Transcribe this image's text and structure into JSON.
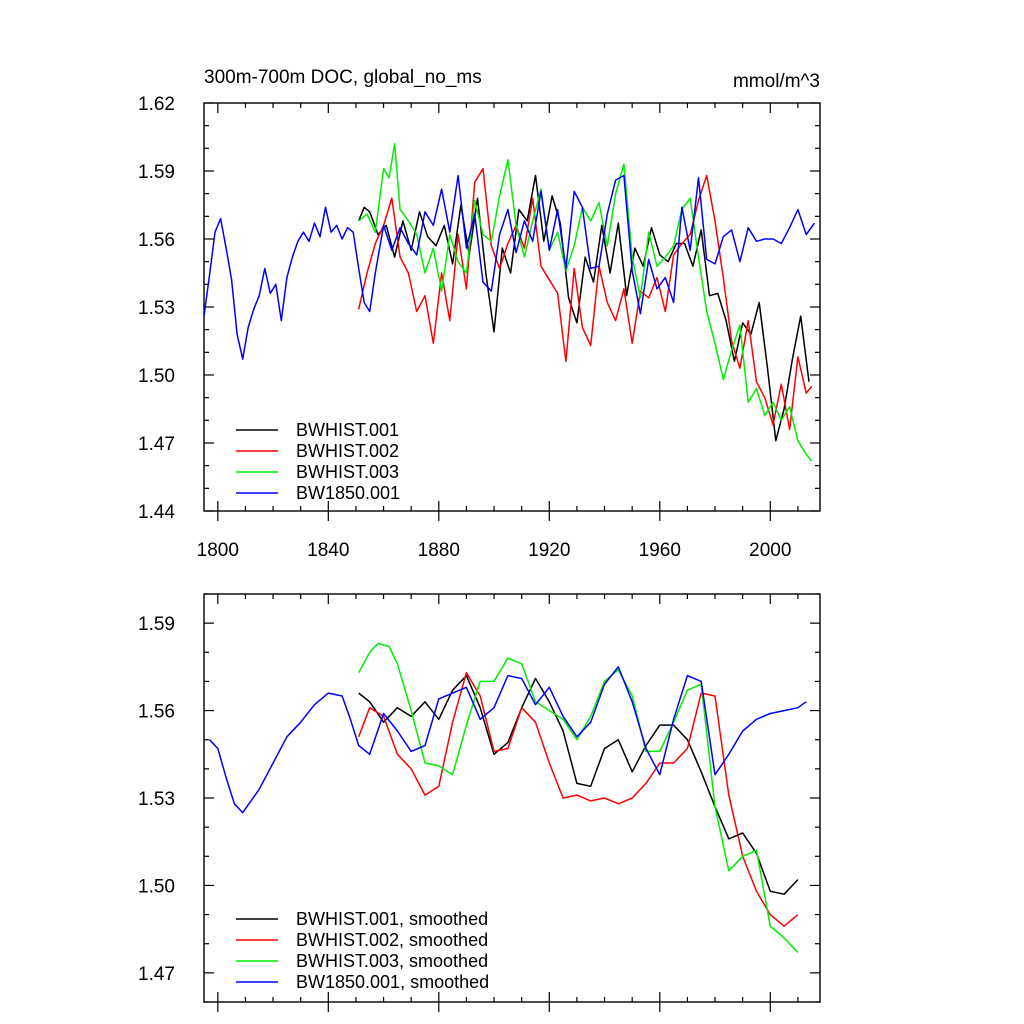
{
  "figure": {
    "title": "300m-700m DOC, global_no_ms",
    "units": "mmol/m^3"
  },
  "colors": {
    "BWHIST.001": "#000000",
    "BWHIST.002": "#ff0000",
    "BWHIST.003": "#00ee00",
    "BW1850.001": "#0000ff"
  },
  "chart_data": [
    {
      "type": "line",
      "title": "300m-700m DOC, global_no_ms",
      "ylabel": "mmol/m^3",
      "xlabel": "",
      "xlim": [
        1795,
        2018
      ],
      "ylim": [
        1.44,
        1.62
      ],
      "xticks": [
        1800,
        1840,
        1880,
        1920,
        1960,
        2000
      ],
      "xtick_labels": [
        "1800",
        "1840",
        "1880",
        "1920",
        "1960",
        "2000"
      ],
      "yticks": [
        1.44,
        1.47,
        1.5,
        1.53,
        1.56,
        1.59,
        1.62
      ],
      "ytick_labels": [
        "1.44",
        "1.47",
        "1.50",
        "1.53",
        "1.56",
        "1.59",
        "1.62"
      ],
      "legend_position": "bottom-left",
      "series": [
        {
          "name": "BWHIST.001",
          "x": [
            1851,
            1853,
            1855,
            1858,
            1861,
            1864,
            1867,
            1870,
            1873,
            1876,
            1879,
            1882,
            1885,
            1888,
            1891,
            1894,
            1897,
            1900,
            1903,
            1906,
            1909,
            1912,
            1915,
            1918,
            1921,
            1924,
            1927,
            1930,
            1933,
            1936,
            1939,
            1942,
            1945,
            1948,
            1951,
            1954,
            1957,
            1960,
            1963,
            1966,
            1969,
            1972,
            1975,
            1978,
            1981,
            1984,
            1987,
            1990,
            1993,
            1996,
            1999,
            2002,
            2005,
            2008,
            2011,
            2014
          ],
          "values": [
            1.568,
            1.574,
            1.572,
            1.562,
            1.566,
            1.552,
            1.568,
            1.555,
            1.572,
            1.561,
            1.557,
            1.566,
            1.549,
            1.575,
            1.553,
            1.578,
            1.545,
            1.519,
            1.556,
            1.545,
            1.573,
            1.568,
            1.588,
            1.559,
            1.579,
            1.567,
            1.534,
            1.523,
            1.552,
            1.541,
            1.566,
            1.545,
            1.567,
            1.535,
            1.556,
            1.548,
            1.565,
            1.553,
            1.55,
            1.558,
            1.558,
            1.548,
            1.564,
            1.535,
            1.536,
            1.524,
            1.506,
            1.523,
            1.518,
            1.532,
            1.503,
            1.471,
            1.485,
            1.507,
            1.526,
            1.497
          ]
        },
        {
          "name": "BWHIST.002",
          "x": [
            1851,
            1854,
            1857,
            1860,
            1863,
            1866,
            1869,
            1872,
            1875,
            1878,
            1881,
            1884,
            1887,
            1890,
            1893,
            1896,
            1899,
            1902,
            1905,
            1908,
            1911,
            1914,
            1917,
            1920,
            1923,
            1926,
            1929,
            1932,
            1935,
            1938,
            1941,
            1944,
            1947,
            1950,
            1953,
            1956,
            1959,
            1962,
            1965,
            1968,
            1971,
            1974,
            1977,
            1980,
            1983,
            1986,
            1989,
            1992,
            1995,
            1998,
            2001,
            2004,
            2007,
            2010,
            2013,
            2015
          ],
          "values": [
            1.529,
            1.545,
            1.558,
            1.566,
            1.578,
            1.552,
            1.545,
            1.528,
            1.535,
            1.514,
            1.545,
            1.524,
            1.562,
            1.538,
            1.585,
            1.591,
            1.557,
            1.547,
            1.558,
            1.566,
            1.556,
            1.578,
            1.548,
            1.542,
            1.536,
            1.506,
            1.547,
            1.521,
            1.513,
            1.548,
            1.532,
            1.524,
            1.538,
            1.514,
            1.537,
            1.534,
            1.543,
            1.528,
            1.553,
            1.558,
            1.562,
            1.577,
            1.588,
            1.568,
            1.543,
            1.515,
            1.503,
            1.524,
            1.497,
            1.49,
            1.478,
            1.496,
            1.476,
            1.508,
            1.492,
            1.495
          ]
        },
        {
          "name": "BWHIST.003",
          "x": [
            1851,
            1854,
            1857,
            1860,
            1862,
            1864,
            1866,
            1869,
            1872,
            1875,
            1878,
            1881,
            1884,
            1887,
            1890,
            1893,
            1896,
            1899,
            1902,
            1905,
            1908,
            1911,
            1914,
            1917,
            1920,
            1923,
            1926,
            1929,
            1932,
            1935,
            1938,
            1941,
            1944,
            1947,
            1950,
            1953,
            1956,
            1959,
            1962,
            1965,
            1968,
            1971,
            1974,
            1977,
            1980,
            1983,
            1986,
            1989,
            1992,
            1995,
            1998,
            2001,
            2004,
            2007,
            2010,
            2013,
            2015
          ],
          "values": [
            1.568,
            1.571,
            1.563,
            1.591,
            1.587,
            1.602,
            1.573,
            1.568,
            1.562,
            1.545,
            1.556,
            1.537,
            1.562,
            1.55,
            1.545,
            1.577,
            1.562,
            1.559,
            1.579,
            1.595,
            1.566,
            1.552,
            1.568,
            1.582,
            1.555,
            1.563,
            1.546,
            1.557,
            1.574,
            1.568,
            1.576,
            1.557,
            1.58,
            1.593,
            1.552,
            1.534,
            1.563,
            1.548,
            1.552,
            1.557,
            1.573,
            1.578,
            1.552,
            1.528,
            1.514,
            1.498,
            1.511,
            1.522,
            1.488,
            1.494,
            1.482,
            1.488,
            1.48,
            1.486,
            1.471,
            1.465,
            1.462
          ]
        },
        {
          "name": "BW1850.001",
          "x": [
            1795,
            1797,
            1799,
            1801,
            1803,
            1805,
            1807,
            1809,
            1811,
            1813,
            1815,
            1817,
            1819,
            1821,
            1823,
            1825,
            1827,
            1829,
            1831,
            1833,
            1835,
            1837,
            1839,
            1841,
            1843,
            1845,
            1847,
            1849,
            1851,
            1853,
            1855,
            1857,
            1860,
            1863,
            1866,
            1869,
            1872,
            1875,
            1878,
            1881,
            1884,
            1887,
            1890,
            1893,
            1896,
            1899,
            1902,
            1905,
            1908,
            1911,
            1914,
            1917,
            1920,
            1923,
            1926,
            1929,
            1932,
            1935,
            1938,
            1941,
            1944,
            1947,
            1950,
            1953,
            1956,
            1959,
            1962,
            1965,
            1968,
            1971,
            1974,
            1977,
            1980,
            1983,
            1986,
            1989,
            1992,
            1995,
            1998,
            2001,
            2004,
            2007,
            2010,
            2013,
            2016
          ],
          "values": [
            1.526,
            1.544,
            1.563,
            1.569,
            1.556,
            1.542,
            1.518,
            1.507,
            1.521,
            1.529,
            1.535,
            1.547,
            1.536,
            1.54,
            1.524,
            1.543,
            1.552,
            1.559,
            1.563,
            1.559,
            1.567,
            1.561,
            1.574,
            1.563,
            1.566,
            1.56,
            1.565,
            1.563,
            1.547,
            1.532,
            1.528,
            1.545,
            1.566,
            1.555,
            1.565,
            1.558,
            1.553,
            1.572,
            1.566,
            1.582,
            1.563,
            1.588,
            1.556,
            1.571,
            1.541,
            1.537,
            1.562,
            1.573,
            1.554,
            1.568,
            1.559,
            1.581,
            1.555,
            1.573,
            1.547,
            1.581,
            1.574,
            1.547,
            1.548,
            1.571,
            1.586,
            1.588,
            1.546,
            1.527,
            1.551,
            1.538,
            1.543,
            1.532,
            1.574,
            1.555,
            1.587,
            1.551,
            1.549,
            1.561,
            1.564,
            1.55,
            1.565,
            1.559,
            1.56,
            1.56,
            1.558,
            1.565,
            1.573,
            1.562,
            1.567
          ]
        }
      ]
    },
    {
      "type": "line",
      "title": "",
      "ylabel": "",
      "xlabel": "",
      "xlim": [
        1795,
        2018
      ],
      "ylim": [
        1.46,
        1.6
      ],
      "xticks": [
        1800,
        1840,
        1880,
        1920,
        1960,
        2000
      ],
      "yticks": [
        1.47,
        1.5,
        1.53,
        1.56,
        1.59
      ],
      "ytick_labels": [
        "1.47",
        "1.50",
        "1.53",
        "1.56",
        "1.59"
      ],
      "legend_position": "bottom-left",
      "series": [
        {
          "name": "BWHIST.001, smoothed",
          "x": [
            1851,
            1855,
            1860,
            1865,
            1870,
            1875,
            1880,
            1885,
            1890,
            1895,
            1900,
            1905,
            1910,
            1915,
            1920,
            1925,
            1930,
            1935,
            1940,
            1945,
            1950,
            1955,
            1960,
            1965,
            1970,
            1975,
            1980,
            1985,
            1990,
            1995,
            2000,
            2005,
            2010
          ],
          "values": [
            1.566,
            1.563,
            1.556,
            1.561,
            1.558,
            1.563,
            1.557,
            1.567,
            1.572,
            1.561,
            1.545,
            1.549,
            1.561,
            1.571,
            1.563,
            1.553,
            1.535,
            1.534,
            1.547,
            1.55,
            1.539,
            1.548,
            1.555,
            1.555,
            1.55,
            1.539,
            1.527,
            1.516,
            1.518,
            1.511,
            1.498,
            1.497,
            1.502
          ]
        },
        {
          "name": "BWHIST.002, smoothed",
          "x": [
            1851,
            1855,
            1860,
            1865,
            1870,
            1875,
            1880,
            1885,
            1890,
            1895,
            1900,
            1905,
            1910,
            1915,
            1920,
            1925,
            1930,
            1935,
            1940,
            1945,
            1950,
            1955,
            1960,
            1965,
            1970,
            1975,
            1980,
            1985,
            1990,
            1995,
            2000,
            2005,
            2010
          ],
          "values": [
            1.551,
            1.561,
            1.558,
            1.545,
            1.54,
            1.531,
            1.534,
            1.556,
            1.573,
            1.565,
            1.546,
            1.547,
            1.561,
            1.556,
            1.542,
            1.53,
            1.531,
            1.529,
            1.53,
            1.528,
            1.53,
            1.535,
            1.542,
            1.542,
            1.547,
            1.566,
            1.565,
            1.531,
            1.51,
            1.498,
            1.49,
            1.486,
            1.49
          ]
        },
        {
          "name": "BWHIST.003, smoothed",
          "x": [
            1851,
            1855,
            1858,
            1862,
            1865,
            1870,
            1875,
            1880,
            1885,
            1890,
            1895,
            1900,
            1905,
            1910,
            1915,
            1920,
            1925,
            1930,
            1935,
            1940,
            1945,
            1950,
            1955,
            1960,
            1965,
            1970,
            1975,
            1980,
            1985,
            1990,
            1995,
            2000,
            2005,
            2010
          ],
          "values": [
            1.573,
            1.58,
            1.583,
            1.582,
            1.576,
            1.56,
            1.542,
            1.541,
            1.538,
            1.555,
            1.57,
            1.57,
            1.578,
            1.576,
            1.563,
            1.56,
            1.557,
            1.55,
            1.558,
            1.57,
            1.574,
            1.565,
            1.546,
            1.546,
            1.556,
            1.567,
            1.569,
            1.527,
            1.505,
            1.51,
            1.512,
            1.486,
            1.482,
            1.477
          ]
        },
        {
          "name": "BW1850.001, smoothed",
          "x": [
            1797,
            1800,
            1803,
            1806,
            1809,
            1812,
            1815,
            1820,
            1825,
            1830,
            1835,
            1840,
            1845,
            1848,
            1851,
            1855,
            1860,
            1865,
            1870,
            1875,
            1880,
            1885,
            1890,
            1895,
            1900,
            1905,
            1910,
            1915,
            1920,
            1925,
            1930,
            1935,
            1940,
            1945,
            1950,
            1955,
            1960,
            1965,
            1970,
            1975,
            1980,
            1985,
            1990,
            1995,
            2000,
            2005,
            2010,
            2013
          ],
          "values": [
            1.55,
            1.547,
            1.537,
            1.528,
            1.525,
            1.529,
            1.533,
            1.542,
            1.551,
            1.556,
            1.562,
            1.566,
            1.565,
            1.557,
            1.548,
            1.545,
            1.559,
            1.553,
            1.546,
            1.548,
            1.564,
            1.566,
            1.568,
            1.557,
            1.561,
            1.572,
            1.571,
            1.562,
            1.568,
            1.558,
            1.551,
            1.556,
            1.569,
            1.575,
            1.563,
            1.547,
            1.538,
            1.557,
            1.572,
            1.57,
            1.538,
            1.545,
            1.553,
            1.557,
            1.559,
            1.56,
            1.561,
            1.563
          ]
        }
      ]
    }
  ]
}
